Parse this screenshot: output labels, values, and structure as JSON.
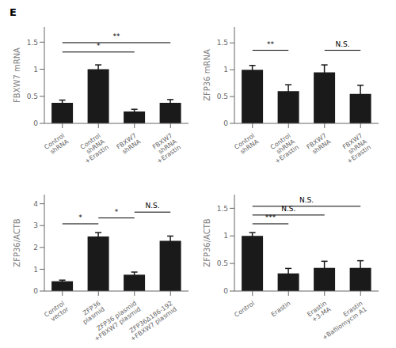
{
  "chart_data": [
    {
      "type": "bar",
      "title": "E",
      "y_label": "FBXW7 mRNA",
      "categories": [
        "Control\nshRNA",
        "Control\nshRNA\n+Erastin",
        "FBXW7\nshRNA",
        "FBXW7\nshRNA\n+Erastin"
      ],
      "values": [
        0.38,
        1.0,
        0.22,
        0.38
      ],
      "errors": [
        0.05,
        0.08,
        0.04,
        0.06
      ],
      "color": "#1a1a1a",
      "ylim": [
        0,
        1.782
      ],
      "yticks": [
        0,
        0.5,
        1,
        1.5
      ],
      "annotations": [
        {
          "text": "*",
          "x1": "Control\nshRNA",
          "x2": "FBXW7\nshRNA",
          "y": 1.3176
        },
        {
          "text": "**",
          "x1": "Control\nshRNA",
          "x2": "FBXW7\nshRNA\n+Erastin",
          "y": 1.4904
        }
      ]
    },
    {
      "type": "bar",
      "y_label": "ZFP36 mRNA",
      "categories": [
        "Control\nshRNA",
        "Control\nshRNA\n+Erastin",
        "FBXW7\nshRNA",
        "FBXW7\nshRNA\n+Erastin"
      ],
      "values": [
        1.0,
        0.6,
        0.95,
        0.55
      ],
      "errors": [
        0.08,
        0.12,
        0.14,
        0.16
      ],
      "color": "#1a1a1a",
      "ylim": [
        0,
        1.7985
      ],
      "yticks": [
        0,
        0.5,
        1,
        1.5
      ],
      "annotations": [
        {
          "text": "**",
          "x1": "Control\nshRNA",
          "x2": "Control\nshRNA\n+Erastin",
          "y": 1.3625
        },
        {
          "text": "N.S.",
          "x1": "FBXW7\nshRNA",
          "x2": "FBXW7\nshRNA\n+Erastin",
          "y": 1.3625
        }
      ]
    },
    {
      "type": "bar",
      "y_label": "ZFP36/ACTB",
      "categories": [
        "Control\nvector",
        "ZFP36\nplasmid",
        "ZFP36 plasmid\n+FBXW7 plasmid",
        "ZFP36Δ186-192\n+FBXW7 plasmid"
      ],
      "values": [
        0.45,
        2.5,
        0.75,
        2.3
      ],
      "errors": [
        0.05,
        0.18,
        0.12,
        0.22
      ],
      "color": "#1a1a1a",
      "ylim": [
        0,
        4.422
      ],
      "yticks": [
        0,
        1,
        2,
        3,
        4
      ],
      "annotations": [
        {
          "text": "*",
          "x1": "Control\nvector",
          "x2": "ZFP36\nplasmid",
          "y": 3.082
        },
        {
          "text": "*",
          "x1": "ZFP36\nplasmid",
          "x2": "ZFP36 plasmid\n+FBXW7 plasmid",
          "y": 3.35
        },
        {
          "text": "N.S.",
          "x1": "ZFP36 plasmid\n+FBXW7 plasmid",
          "x2": "ZFP36Δ186-192\n+FBXW7 plasmid",
          "y": 3.618
        }
      ]
    },
    {
      "type": "bar",
      "y_label": "ZFP36/ACTB",
      "categories": [
        "Control",
        "Erastin",
        "Erastin\n+3-MA",
        "Erastin\n+Bafilomycin A1"
      ],
      "values": [
        1.0,
        0.32,
        0.42,
        0.42
      ],
      "errors": [
        0.06,
        0.09,
        0.12,
        0.13
      ],
      "color": "#1a1a1a",
      "ylim": [
        0,
        1.749
      ],
      "yticks": [
        0,
        0.5,
        1,
        1.5
      ],
      "annotations": [
        {
          "text": "***",
          "x1": "Control",
          "x2": "Erastin",
          "y": 1.219
        },
        {
          "text": "N.S.",
          "x1": "Control",
          "x2": "Erastin\n+3-MA",
          "y": 1.378
        },
        {
          "text": "N.S.",
          "x1": "Control",
          "x2": "Erastin\n+Bafilomycin A1",
          "y": 1.537
        }
      ]
    }
  ]
}
